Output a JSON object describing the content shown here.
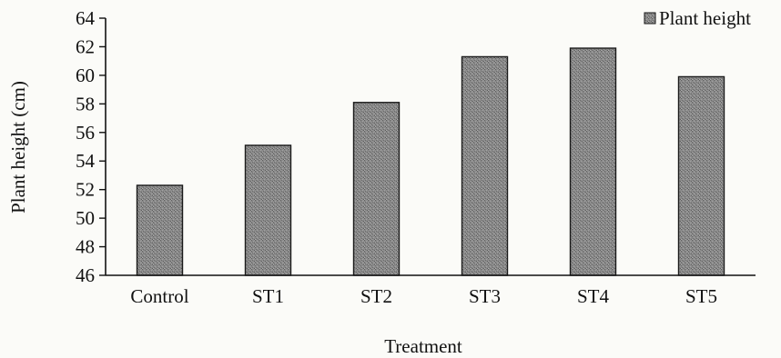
{
  "chart_data": {
    "type": "bar",
    "categories": [
      "Control",
      "ST1",
      "ST2",
      "ST3",
      "ST4",
      "ST5"
    ],
    "series": [
      {
        "name": "Plant height",
        "values": [
          52.3,
          55.1,
          58.1,
          61.3,
          61.9,
          59.9
        ]
      }
    ],
    "xlabel": "Treatment",
    "ylabel": "Plant height (cm)",
    "ylim": [
      46,
      64
    ],
    "yticks": [
      "46",
      "48",
      "50",
      "52",
      "54",
      "56",
      "58",
      "60",
      "62",
      "64"
    ],
    "grid": false,
    "legend_position": "top-right",
    "colors": {
      "bar_fill": "#7e7e7e",
      "bar_stroke": "#1a1a1a",
      "axis": "#111111",
      "background": "#fbfbf8"
    }
  }
}
